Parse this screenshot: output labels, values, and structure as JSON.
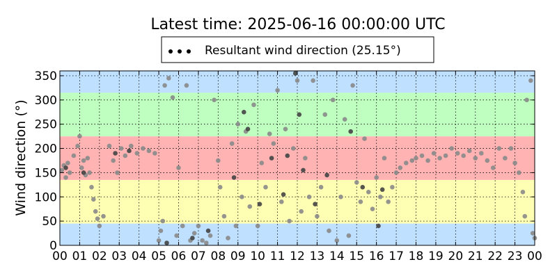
{
  "chart_data": {
    "type": "scatter",
    "title": "Latest time: 2025-06-16 00:00:00 UTC",
    "xlabel": "",
    "ylabel": "Wind direction (°)",
    "xlim": [
      0,
      24
    ],
    "ylim": [
      0,
      360
    ],
    "x_tick_labels": [
      "00",
      "01",
      "02",
      "03",
      "04",
      "05",
      "06",
      "07",
      "08",
      "09",
      "10",
      "11",
      "12",
      "13",
      "14",
      "15",
      "16",
      "17",
      "18",
      "19",
      "20",
      "21",
      "22",
      "23",
      "00"
    ],
    "y_ticks": [
      0,
      50,
      100,
      150,
      200,
      250,
      300,
      350
    ],
    "grid": true,
    "legend": {
      "label": "Resultant wind direction (25.15°)",
      "placement": "top-center"
    },
    "direction_bands": [
      {
        "from": 0,
        "to": 45,
        "color": "#bfe0ff"
      },
      {
        "from": 45,
        "to": 135,
        "color": "#ffffb3"
      },
      {
        "from": 135,
        "to": 225,
        "color": "#ffb3b3"
      },
      {
        "from": 225,
        "to": 315,
        "color": "#bfffbf"
      },
      {
        "from": 315,
        "to": 360,
        "color": "#bfe0ff"
      }
    ],
    "series": [
      {
        "marker_color": "#8a8a8a",
        "points": [
          [
            0.1,
            155
          ],
          [
            0.2,
            165
          ],
          [
            0.3,
            140
          ],
          [
            0.4,
            170
          ],
          [
            0.5,
            150
          ],
          [
            0.7,
            185
          ],
          [
            0.9,
            205
          ],
          [
            1.0,
            225
          ],
          [
            1.1,
            160
          ],
          [
            1.2,
            175
          ],
          [
            1.3,
            145
          ],
          [
            1.4,
            180
          ],
          [
            1.5,
            150
          ],
          [
            1.6,
            120
          ],
          [
            1.7,
            95
          ],
          [
            1.8,
            70
          ],
          [
            1.9,
            55
          ],
          [
            2.0,
            40
          ],
          [
            2.2,
            60
          ],
          [
            2.5,
            205
          ],
          [
            2.7,
            175
          ],
          [
            2.9,
            150
          ],
          [
            3.1,
            200
          ],
          [
            3.3,
            185
          ],
          [
            3.6,
            205
          ],
          [
            3.9,
            190
          ],
          [
            4.2,
            200
          ],
          [
            4.5,
            195
          ],
          [
            4.8,
            190
          ],
          [
            5.0,
            10
          ],
          [
            5.1,
            30
          ],
          [
            5.2,
            50
          ],
          [
            5.3,
            330
          ],
          [
            5.5,
            345
          ],
          [
            5.7,
            305
          ],
          [
            5.9,
            20
          ],
          [
            6.0,
            160
          ],
          [
            6.2,
            40
          ],
          [
            6.4,
            330
          ],
          [
            6.6,
            10
          ],
          [
            6.8,
            25
          ],
          [
            7.0,
            40
          ],
          [
            7.2,
            10
          ],
          [
            7.4,
            5
          ],
          [
            7.6,
            20
          ],
          [
            7.8,
            300
          ],
          [
            8.0,
            175
          ],
          [
            8.1,
            120
          ],
          [
            8.3,
            60
          ],
          [
            8.5,
            15
          ],
          [
            8.7,
            210
          ],
          [
            8.9,
            40
          ],
          [
            9.0,
            250
          ],
          [
            9.2,
            100
          ],
          [
            9.4,
            235
          ],
          [
            9.6,
            80
          ],
          [
            9.8,
            290
          ],
          [
            10.0,
            40
          ],
          [
            10.2,
            170
          ],
          [
            10.4,
            120
          ],
          [
            10.6,
            230
          ],
          [
            10.8,
            210
          ],
          [
            11.0,
            320
          ],
          [
            11.2,
            90
          ],
          [
            11.4,
            240
          ],
          [
            11.6,
            50
          ],
          [
            11.8,
            200
          ],
          [
            12.0,
            340
          ],
          [
            12.2,
            70
          ],
          [
            12.4,
            180
          ],
          [
            12.6,
            100
          ],
          [
            12.8,
            340
          ],
          [
            13.0,
            60
          ],
          [
            13.2,
            120
          ],
          [
            13.4,
            270
          ],
          [
            13.6,
            30
          ],
          [
            13.8,
            300
          ],
          [
            14.0,
            10
          ],
          [
            14.2,
            100
          ],
          [
            14.4,
            260
          ],
          [
            14.6,
            20
          ],
          [
            14.8,
            330
          ],
          [
            15.0,
            130
          ],
          [
            15.2,
            90
          ],
          [
            15.4,
            220
          ],
          [
            15.6,
            110
          ],
          [
            15.8,
            75
          ],
          [
            16.0,
            140
          ],
          [
            16.2,
            100
          ],
          [
            16.4,
            180
          ],
          [
            16.6,
            90
          ],
          [
            16.8,
            120
          ],
          [
            17.0,
            150
          ],
          [
            17.2,
            160
          ],
          [
            17.5,
            170
          ],
          [
            17.8,
            175
          ],
          [
            18.0,
            180
          ],
          [
            18.3,
            185
          ],
          [
            18.6,
            175
          ],
          [
            18.9,
            190
          ],
          [
            19.2,
            180
          ],
          [
            19.5,
            185
          ],
          [
            19.8,
            200
          ],
          [
            20.1,
            190
          ],
          [
            20.4,
            185
          ],
          [
            20.7,
            195
          ],
          [
            21.0,
            180
          ],
          [
            21.3,
            190
          ],
          [
            21.6,
            175
          ],
          [
            21.9,
            160
          ],
          [
            22.2,
            200
          ],
          [
            22.5,
            180
          ],
          [
            22.8,
            200
          ],
          [
            23.0,
            170
          ],
          [
            23.2,
            150
          ],
          [
            23.4,
            110
          ],
          [
            23.5,
            60
          ],
          [
            23.6,
            300
          ],
          [
            23.8,
            340
          ],
          [
            23.9,
            25
          ],
          [
            24.0,
            15
          ]
        ]
      },
      {
        "marker_color": "#444444",
        "points": [
          [
            0.3,
            160
          ],
          [
            1.2,
            150
          ],
          [
            2.8,
            190
          ],
          [
            3.5,
            195
          ],
          [
            5.4,
            5
          ],
          [
            6.7,
            15
          ],
          [
            7.5,
            30
          ],
          [
            8.8,
            140
          ],
          [
            9.3,
            275
          ],
          [
            9.5,
            240
          ],
          [
            10.1,
            85
          ],
          [
            10.7,
            180
          ],
          [
            11.3,
            105
          ],
          [
            11.5,
            185
          ],
          [
            11.9,
            355
          ],
          [
            12.1,
            270
          ],
          [
            12.3,
            155
          ],
          [
            12.9,
            85
          ],
          [
            13.5,
            145
          ],
          [
            14.7,
            235
          ],
          [
            15.3,
            120
          ],
          [
            16.1,
            40
          ],
          [
            16.3,
            115
          ]
        ]
      }
    ]
  }
}
